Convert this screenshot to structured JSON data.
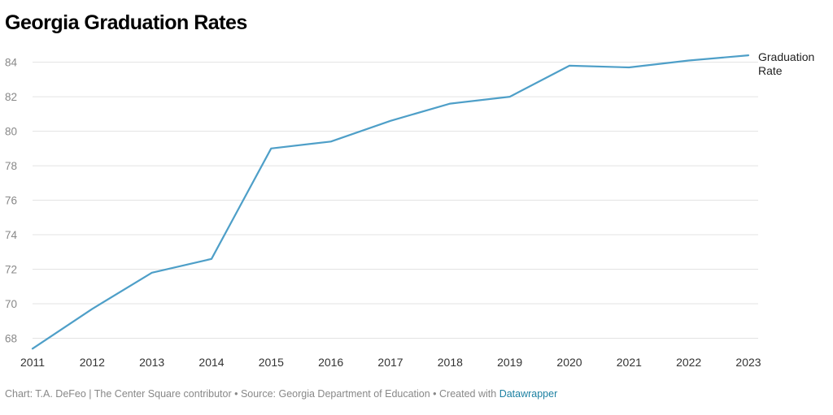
{
  "title": "Georgia Graduation Rates",
  "footer": {
    "prefix": "Chart: T.A. DeFeo | The Center Square contributor • Source: Georgia Department of Education • Created with ",
    "link": "Datawrapper"
  },
  "colors": {
    "line": "#4e9fc8",
    "grid": "#e3e3e3",
    "link": "#1d81a2"
  },
  "chart_data": {
    "type": "line",
    "title": "Georgia Graduation Rates",
    "xlabel": "",
    "ylabel": "",
    "x": [
      "2011",
      "2012",
      "2013",
      "2014",
      "2015",
      "2016",
      "2017",
      "2018",
      "2019",
      "2020",
      "2021",
      "2022",
      "2023"
    ],
    "y_ticks": [
      68,
      70,
      72,
      74,
      76,
      78,
      80,
      82,
      84
    ],
    "ylim": [
      67.2,
      84.9
    ],
    "grid": true,
    "series": [
      {
        "name": "Graduation Rate",
        "label_lines": [
          "Graduation",
          "Rate"
        ],
        "values": [
          67.4,
          69.7,
          71.8,
          72.6,
          79.0,
          79.4,
          80.6,
          81.6,
          82.0,
          83.8,
          83.7,
          84.1,
          84.4
        ]
      }
    ]
  }
}
